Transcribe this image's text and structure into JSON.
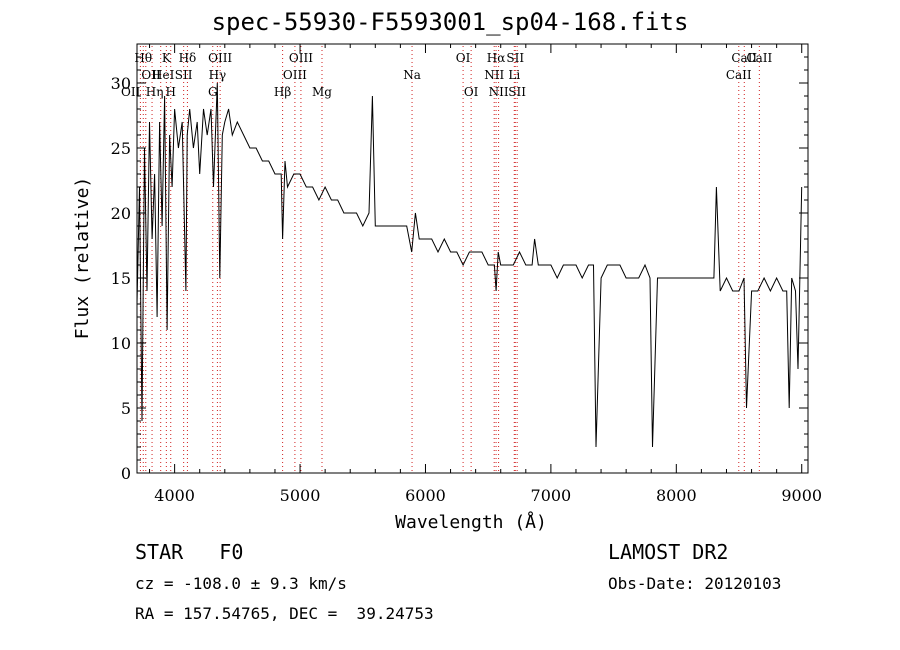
{
  "chart_data": {
    "type": "line",
    "title": "spec-55930-F5593001_sp04-168.fits",
    "xlabel": "Wavelength (Å)",
    "ylabel": "Flux (relative)",
    "xlim": [
      3700,
      9050
    ],
    "ylim": [
      0,
      33
    ],
    "xticks": [
      4000,
      5000,
      6000,
      7000,
      8000,
      9000
    ],
    "yticks": [
      0,
      5,
      10,
      15,
      20,
      25,
      30
    ],
    "series": [
      {
        "color": "#000000",
        "x": [
          3700,
          3720,
          3740,
          3760,
          3780,
          3800,
          3820,
          3840,
          3860,
          3880,
          3900,
          3920,
          3940,
          3960,
          3980,
          4000,
          4030,
          4060,
          4090,
          4100,
          4120,
          4150,
          4180,
          4200,
          4230,
          4260,
          4290,
          4310,
          4340,
          4360,
          4380,
          4400,
          4430,
          4460,
          4500,
          4550,
          4600,
          4650,
          4700,
          4750,
          4800,
          4850,
          4861,
          4880,
          4900,
          4950,
          5000,
          5050,
          5100,
          5150,
          5200,
          5250,
          5300,
          5350,
          5400,
          5450,
          5500,
          5550,
          5577,
          5600,
          5650,
          5700,
          5750,
          5800,
          5850,
          5890,
          5920,
          5950,
          6000,
          6050,
          6100,
          6150,
          6200,
          6250,
          6300,
          6350,
          6400,
          6450,
          6500,
          6550,
          6563,
          6580,
          6600,
          6650,
          6700,
          6750,
          6800,
          6850,
          6870,
          6900,
          6950,
          7000,
          7050,
          7100,
          7150,
          7200,
          7250,
          7300,
          7340,
          7360,
          7400,
          7450,
          7500,
          7550,
          7600,
          7650,
          7700,
          7750,
          7790,
          7810,
          7850,
          7900,
          7950,
          8000,
          8050,
          8100,
          8150,
          8200,
          8250,
          8300,
          8320,
          8350,
          8400,
          8450,
          8500,
          8540,
          8560,
          8600,
          8650,
          8700,
          8750,
          8800,
          8850,
          8880,
          8900,
          8920,
          8950,
          8970,
          9000
        ],
        "values": [
          13,
          22,
          4,
          25,
          14,
          27,
          18,
          23,
          12,
          27,
          19,
          29,
          11,
          26,
          22,
          28,
          25,
          27,
          14,
          26,
          28,
          25,
          27,
          23,
          28,
          26,
          28,
          22,
          30,
          15,
          26,
          27,
          28,
          26,
          27,
          26,
          25,
          25,
          24,
          24,
          23,
          23,
          18,
          24,
          22,
          23,
          23,
          22,
          22,
          21,
          22,
          21,
          21,
          20,
          20,
          20,
          19,
          20,
          29,
          19,
          19,
          19,
          19,
          19,
          19,
          17,
          20,
          18,
          18,
          18,
          17,
          18,
          17,
          17,
          16,
          17,
          17,
          17,
          16,
          16,
          14,
          17,
          16,
          16,
          16,
          17,
          16,
          16,
          18,
          16,
          16,
          16,
          15,
          16,
          16,
          16,
          15,
          16,
          16,
          2,
          15,
          16,
          16,
          16,
          15,
          15,
          15,
          16,
          15,
          2,
          15,
          15,
          15,
          15,
          15,
          15,
          15,
          15,
          15,
          15,
          22,
          14,
          15,
          14,
          14,
          15,
          5,
          14,
          14,
          15,
          14,
          15,
          14,
          14,
          5,
          15,
          14,
          8,
          22
        ]
      }
    ],
    "lines": [
      {
        "x": 3727,
        "label": "OII",
        "row": 2,
        "anchor": "end"
      },
      {
        "x": 3750,
        "label": "Hθ",
        "row": 0,
        "anchor": "middle"
      },
      {
        "x": 3770,
        "label": "Hη",
        "row": 2,
        "anchor": "start"
      },
      {
        "x": 3820,
        "label": "HeI",
        "row": 1,
        "anchor": "start"
      },
      {
        "x": 3889,
        "label": "OII",
        "row": 1,
        "anchor": "end"
      },
      {
        "x": 3934,
        "label": "K",
        "row": 0,
        "anchor": "middle"
      },
      {
        "x": 3969,
        "label": "H",
        "row": 2,
        "anchor": "middle"
      },
      {
        "x": 4072,
        "label": "SII",
        "row": 1,
        "anchor": "middle"
      },
      {
        "x": 4102,
        "label": "Hδ",
        "row": 0,
        "anchor": "middle"
      },
      {
        "x": 4304,
        "label": "G",
        "row": 2,
        "anchor": "middle"
      },
      {
        "x": 4341,
        "label": "Hγ",
        "row": 1,
        "anchor": "middle"
      },
      {
        "x": 4363,
        "label": "OIII",
        "row": 0,
        "anchor": "middle"
      },
      {
        "x": 4861,
        "label": "Hβ",
        "row": 2,
        "anchor": "middle"
      },
      {
        "x": 4959,
        "label": "OIII",
        "row": 1,
        "anchor": "middle"
      },
      {
        "x": 5007,
        "label": "OIII",
        "row": 0,
        "anchor": "middle"
      },
      {
        "x": 5175,
        "label": "Mg",
        "row": 2,
        "anchor": "middle"
      },
      {
        "x": 5893,
        "label": "Na",
        "row": 1,
        "anchor": "middle"
      },
      {
        "x": 6300,
        "label": "OI",
        "row": 0,
        "anchor": "middle"
      },
      {
        "x": 6364,
        "label": "OI",
        "row": 2,
        "anchor": "middle"
      },
      {
        "x": 6548,
        "label": "NII",
        "row": 1,
        "anchor": "middle"
      },
      {
        "x": 6563,
        "label": "Hα",
        "row": 0,
        "anchor": "middle"
      },
      {
        "x": 6583,
        "label": "NII",
        "row": 2,
        "anchor": "middle"
      },
      {
        "x": 6708,
        "label": "Li",
        "row": 1,
        "anchor": "middle"
      },
      {
        "x": 6716,
        "label": "SII",
        "row": 0,
        "anchor": "middle"
      },
      {
        "x": 6731,
        "label": "SII",
        "row": 2,
        "anchor": "middle"
      },
      {
        "x": 8498,
        "label": "CaII",
        "row": 1,
        "anchor": "middle"
      },
      {
        "x": 8542,
        "label": "CaII",
        "row": 0,
        "anchor": "middle"
      },
      {
        "x": 8662,
        "label": "CaII",
        "row": 0,
        "anchor": "middle"
      }
    ]
  },
  "info": {
    "class_line": "STAR   F0",
    "survey": "LAMOST DR2",
    "cz_line": "cz = -108.0 ± 9.3 km/s",
    "obs_date_line": "Obs-Date: 20120103",
    "radec_line": "RA = 157.54765, DEC =  39.24753"
  }
}
